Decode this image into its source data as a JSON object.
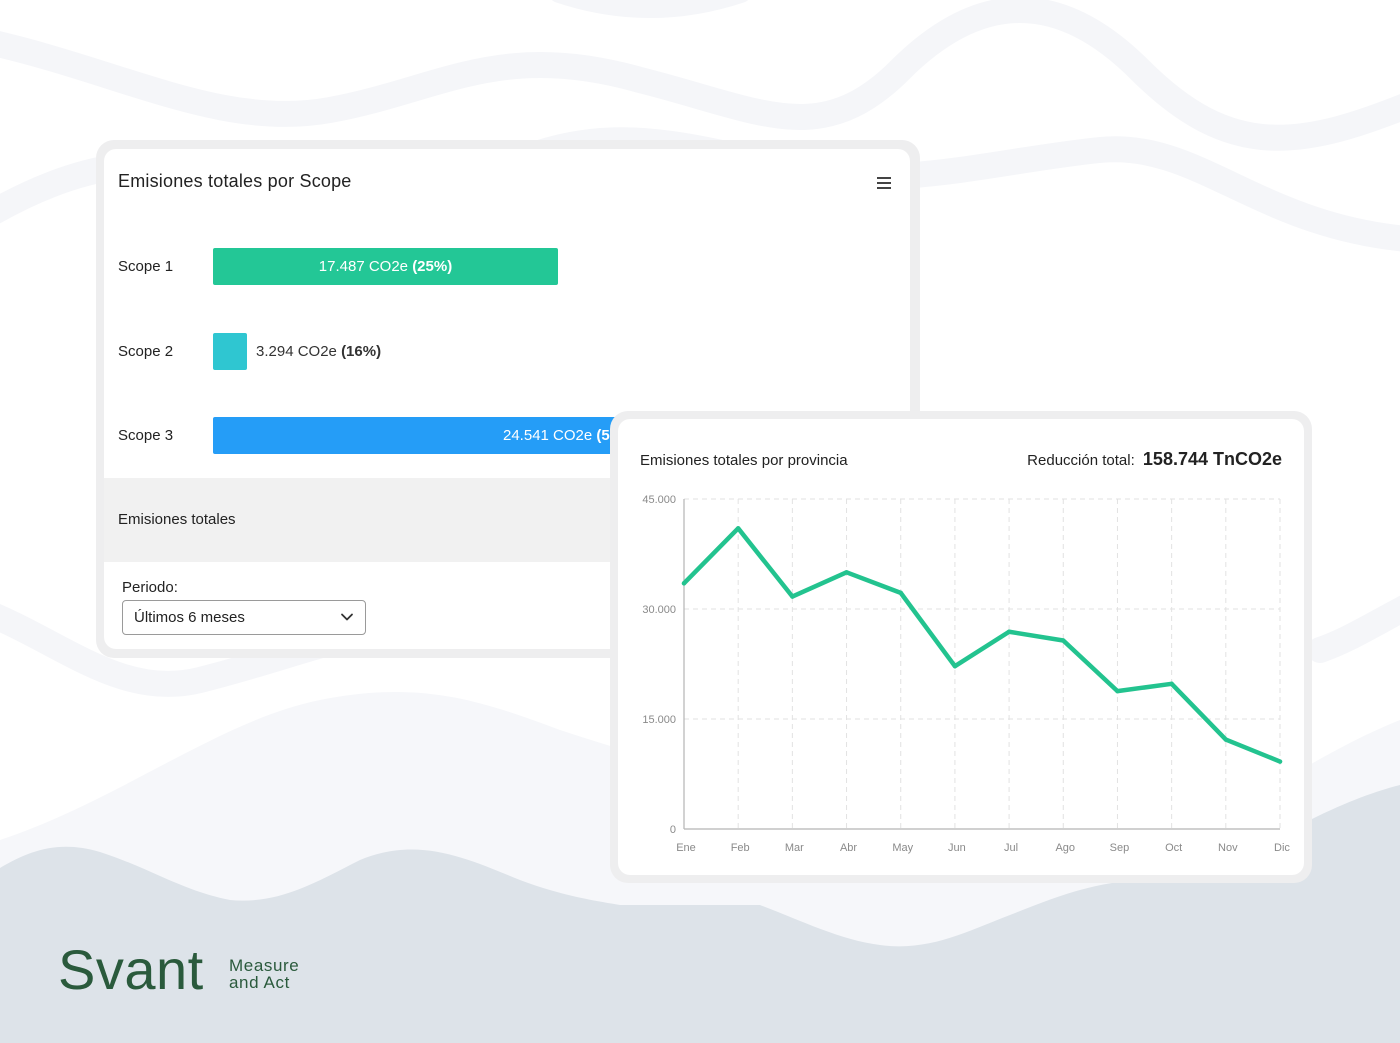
{
  "scope_card": {
    "title": "Emisiones totales por Scope",
    "menu_icon": "hamburger-menu-icon",
    "scopes": [
      {
        "label": "Scope 1",
        "value_text": "17.487 CO2e",
        "pct_text": "(25%)",
        "color": "#23c796"
      },
      {
        "label": "Scope 2",
        "value_text": "3.294 CO2e",
        "pct_text": "(16%)",
        "color": "#2fc6d1"
      },
      {
        "label": "Scope 3",
        "value_text": "24.541 CO2e",
        "pct_text": "(5",
        "color": "#259df7"
      }
    ],
    "totals_label": "Emisiones totales",
    "period_label": "Periodo:",
    "period_value": "Últimos 6 meses",
    "period_icon": "chevron-down-icon"
  },
  "line_card": {
    "title": "Emisiones totales por provincia",
    "reduction_label": "Reducción total:",
    "reduction_value": "158.744 TnCO2e"
  },
  "chart_data": {
    "type": "line",
    "x": [
      "Ene",
      "Feb",
      "Mar",
      "Abr",
      "May",
      "Jun",
      "Jul",
      "Ago",
      "Sep",
      "Oct",
      "Nov",
      "Dic"
    ],
    "series": [
      {
        "values": [
          33500,
          41000,
          31700,
          35000,
          32200,
          22200,
          26900,
          25700,
          18800,
          19800,
          12200,
          9200
        ],
        "color": "#23c38f"
      }
    ],
    "ylim": [
      0,
      45000
    ],
    "yticks": [
      0,
      15000,
      30000,
      45000
    ],
    "ytick_labels": [
      "0",
      "15.000",
      "30.000",
      "45.000"
    ],
    "grid": true
  },
  "brand": {
    "name": "Svant",
    "tagline_1": "Measure",
    "tagline_2": "and Act",
    "color": "#2a5a3c"
  }
}
